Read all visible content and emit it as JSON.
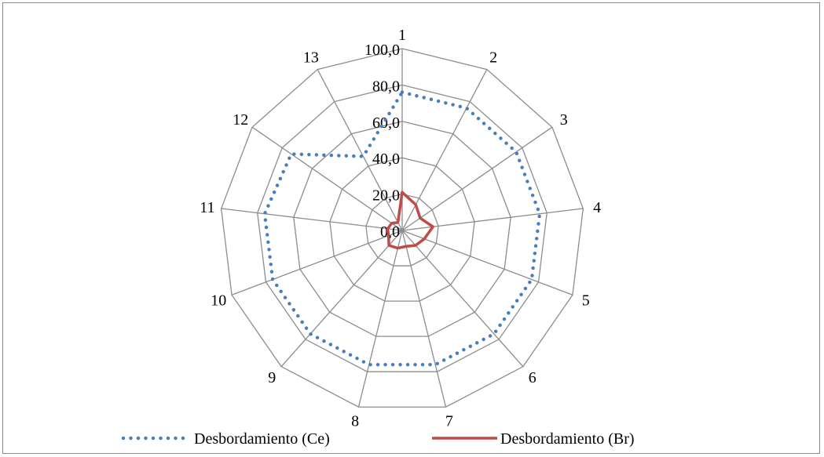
{
  "chart_data": {
    "type": "radar",
    "title": "",
    "categories": [
      "1",
      "2",
      "3",
      "4",
      "5",
      "6",
      "7",
      "8",
      "9",
      "10",
      "11",
      "12",
      "13"
    ],
    "radial_axis": {
      "min": 0,
      "max": 100,
      "step": 20,
      "tick_labels": [
        "0,0",
        "20,0",
        "40,0",
        "60,0",
        "80,0",
        "100,0"
      ]
    },
    "grid": true,
    "legend_position": "bottom",
    "series": [
      {
        "name": "Desbordamiento (Ce)",
        "line_style": "dotted",
        "color": "#4a7ebb",
        "values": [
          76,
          76,
          76,
          76,
          76,
          76,
          76,
          76,
          76,
          76,
          76,
          74,
          46
        ]
      },
      {
        "name": "Desbordamiento (Br)",
        "line_style": "solid",
        "color": "#be4b48",
        "values": [
          21,
          16,
          12,
          17,
          13,
          11,
          9,
          10,
          11,
          8,
          8,
          7,
          5
        ]
      }
    ]
  }
}
